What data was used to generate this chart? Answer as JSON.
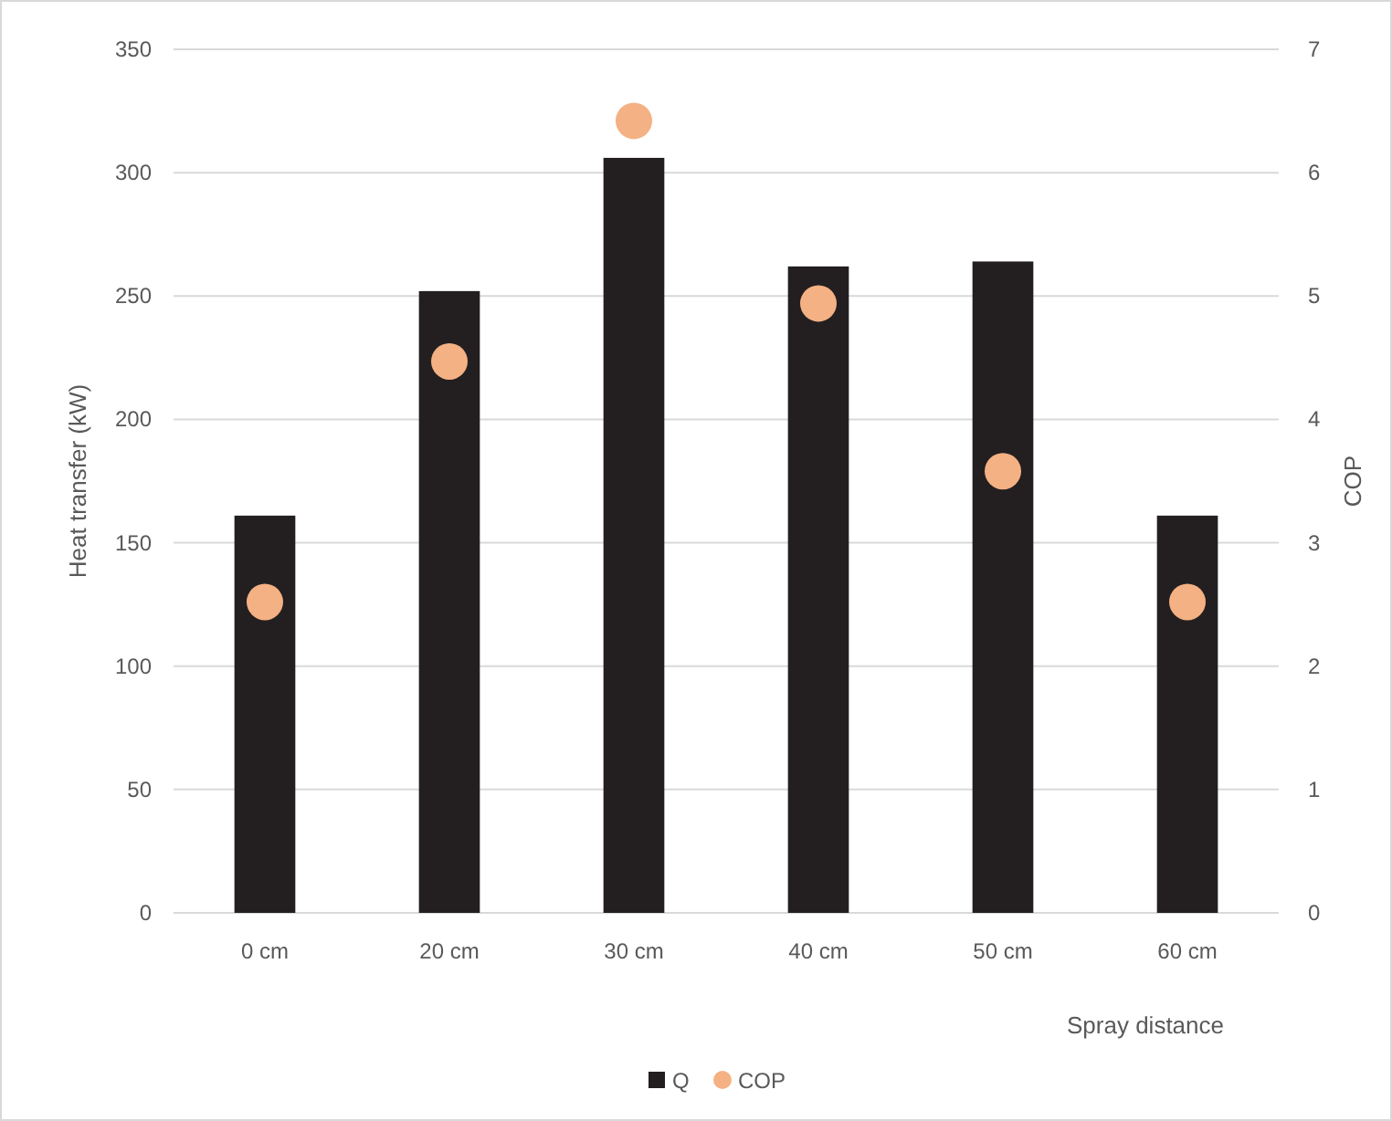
{
  "chart_data": {
    "type": "bar",
    "xlabel": "Spray distance",
    "ylabel": "Heat transfer (kW)",
    "y2label": "COP",
    "categories": [
      "0 cm",
      "20 cm",
      "30 cm",
      "40 cm",
      "50 cm",
      "60 cm"
    ],
    "series": [
      {
        "name": "Q",
        "color": "#231f20",
        "values": [
          161,
          252,
          306,
          262,
          264,
          161
        ]
      },
      {
        "name": "COP",
        "type": "scatter",
        "axis": "y2",
        "marker": "circle",
        "color": "#f4b183",
        "values": [
          2.52,
          4.47,
          6.42,
          4.94,
          3.58,
          2.52
        ]
      }
    ],
    "ylim": [
      0,
      350
    ],
    "yticks": [
      0,
      50,
      100,
      150,
      200,
      250,
      300,
      350
    ],
    "y2lim": [
      0,
      7
    ],
    "y2ticks": [
      0,
      1,
      2,
      3,
      4,
      5,
      6,
      7
    ],
    "grid": "y",
    "legend": "bottom"
  }
}
